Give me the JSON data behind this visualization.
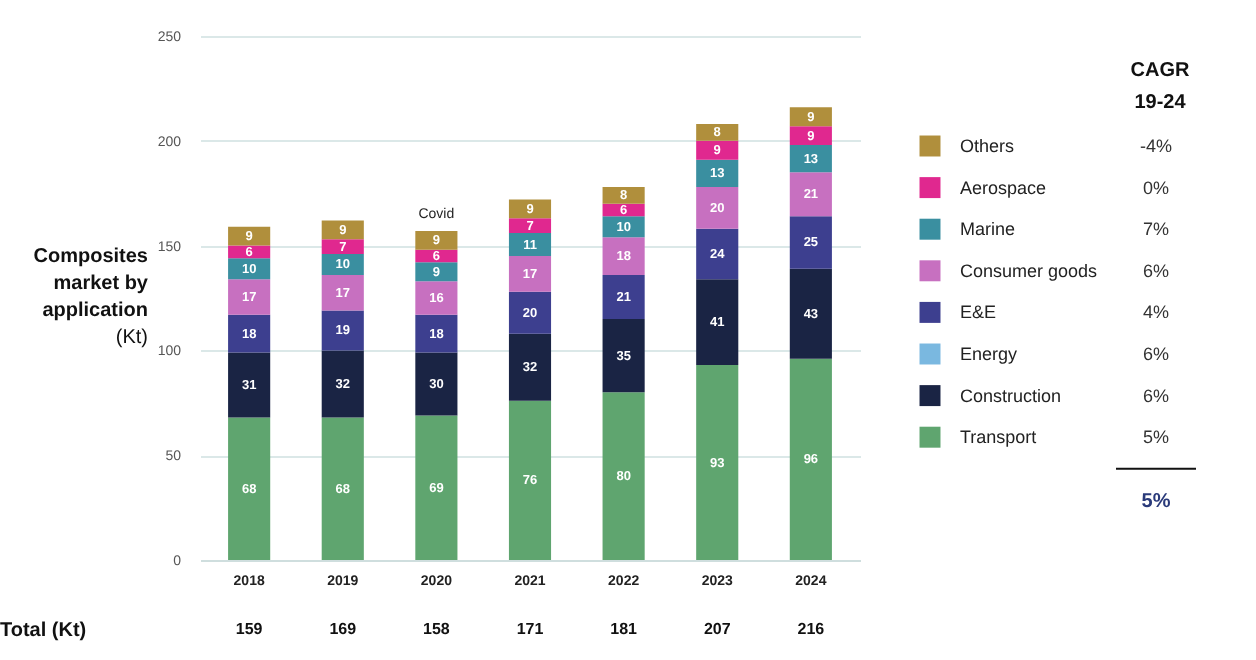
{
  "chart_data": {
    "type": "bar",
    "stacked": true,
    "ylabel": "Composites market by application (Kt)",
    "categories": [
      "2018",
      "2019",
      "2020",
      "2021",
      "2022",
      "2023",
      "2024"
    ],
    "series": [
      {
        "name": "Transport",
        "color": "#5fa56f",
        "values": [
          68,
          68,
          69,
          76,
          80,
          93,
          96
        ]
      },
      {
        "name": "Construction",
        "color": "#1a2444",
        "values": [
          31,
          32,
          30,
          32,
          35,
          41,
          43
        ]
      },
      {
        "name": "Energy",
        "color": "#7ab8e0",
        "values": [
          null,
          null,
          null,
          null,
          null,
          null,
          null
        ]
      },
      {
        "name": "E&E",
        "color": "#3d3f8f",
        "values": [
          18,
          19,
          18,
          20,
          21,
          24,
          25
        ]
      },
      {
        "name": "Consumer goods",
        "color": "#c770c0",
        "values": [
          17,
          17,
          16,
          17,
          18,
          20,
          21
        ]
      },
      {
        "name": "Marine",
        "color": "#3a8fa0",
        "values": [
          10,
          10,
          9,
          11,
          10,
          13,
          13
        ]
      },
      {
        "name": "Aerospace",
        "color": "#e0288f",
        "values": [
          6,
          7,
          6,
          7,
          6,
          9,
          9
        ]
      },
      {
        "name": "Others",
        "color": "#b08f3c",
        "values": [
          9,
          9,
          9,
          9,
          8,
          8,
          9
        ]
      }
    ],
    "ylim": [
      0,
      250
    ],
    "yticks": [
      0,
      50,
      100,
      150,
      200,
      250
    ],
    "grid": "y",
    "data_labels": true,
    "legend": "right",
    "annotations": [
      "Covid",
      "Total (Kt)",
      "159",
      "169",
      "158",
      "171",
      "181",
      "207",
      "216",
      "CAGR 19-24",
      "-4%",
      "0%",
      "7%",
      "6%",
      "4%",
      "6%",
      "6%",
      "5%",
      "5%"
    ]
  }
}
